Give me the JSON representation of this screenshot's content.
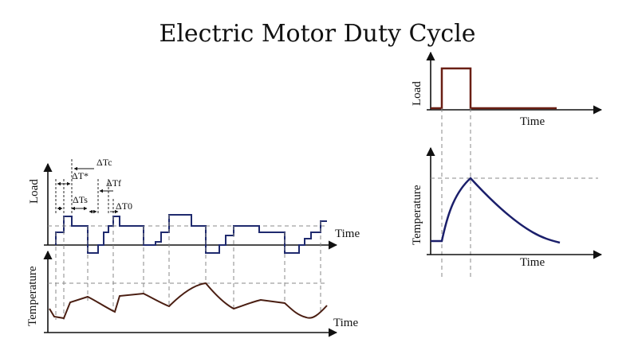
{
  "title": "Electric Motor Duty Cycle",
  "colors": {
    "load_left": "#1f2a6e",
    "temp_left": "#4a1e12",
    "load_right": "#6a1f14",
    "temp_right": "#1b1f6b",
    "axis": "#111111",
    "dashed": "#8a8a8a"
  },
  "left": {
    "load_axis_label": "Load",
    "load_time_label": "Time",
    "temp_axis_label": "Temperature",
    "temp_time_label": "Time",
    "annotations": {
      "delta_tc": "ΔTc",
      "delta_t_star": "ΔT*",
      "delta_tf": "ΔTf",
      "delta_ts": "ΔTs",
      "delta_t0": "ΔT0"
    }
  },
  "right": {
    "load_axis_label": "Load",
    "load_time_label": "Time",
    "temp_axis_label": "Temperature",
    "temp_time_label": "Time"
  }
}
